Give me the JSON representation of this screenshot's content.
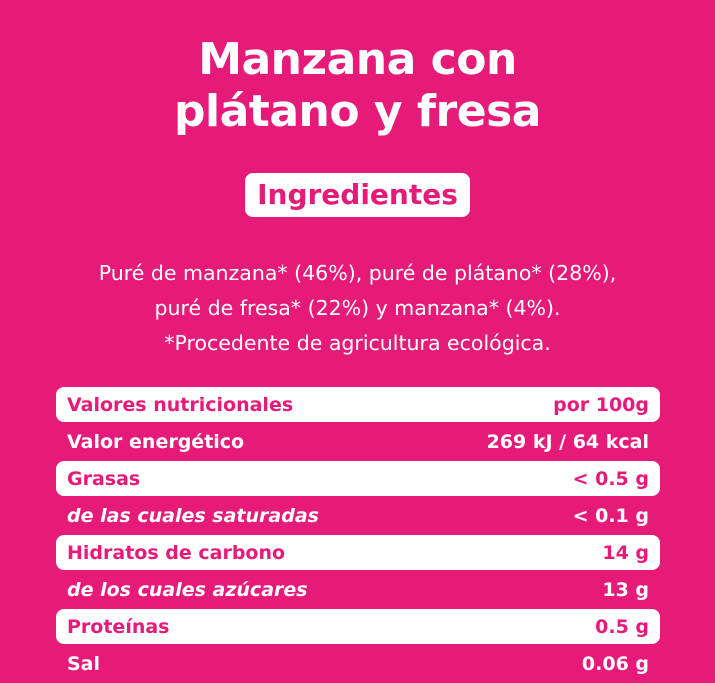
{
  "product": {
    "title_line1": "Manzana con",
    "title_line2": "plátano y fresa"
  },
  "ingredients": {
    "heading": "Ingredientes",
    "lines": [
      "Puré de manzana* (46%), puré de plátano* (28%),",
      "puré de fresa* (22%) y manzana* (4%).",
      "*Procedente de agricultura  ecológica."
    ]
  },
  "nutrition": {
    "rows": [
      {
        "label": "Valores nutricionales",
        "value": "por 100g"
      },
      {
        "label": "Valor energético",
        "value": "269 kJ / 64 kcal"
      },
      {
        "label": "Grasas",
        "value": "< 0.5 g"
      },
      {
        "label": "de las cuales saturadas",
        "value": "< 0.1 g"
      },
      {
        "label": "Hidratos de carbono",
        "value": "14 g"
      },
      {
        "label": "de los cuales azúcares",
        "value": "13 g"
      },
      {
        "label": "Proteínas",
        "value": "0.5 g"
      },
      {
        "label": "Sal",
        "value": "0.06 g"
      }
    ]
  },
  "colors": {
    "background": "#e61b79",
    "text": "#ffffff"
  }
}
